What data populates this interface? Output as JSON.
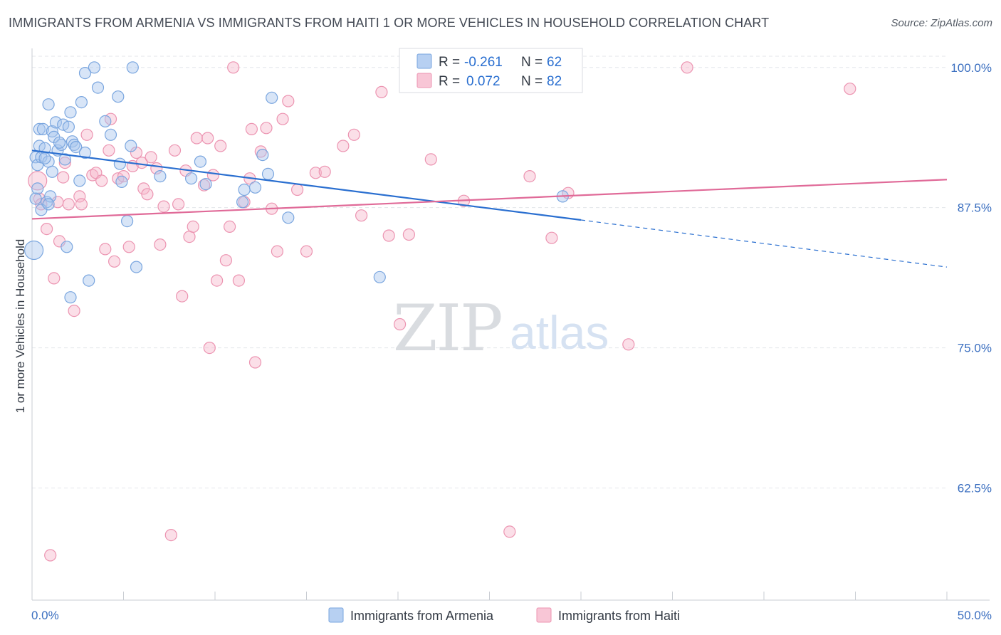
{
  "header": {
    "title": "IMMIGRANTS FROM ARMENIA VS IMMIGRANTS FROM HAITI 1 OR MORE VEHICLES IN HOUSEHOLD CORRELATION CHART",
    "source": "Source: ZipAtlas.com"
  },
  "watermark": {
    "zip": "ZIP",
    "atlas": "atlas"
  },
  "chart_data": {
    "type": "scatter",
    "title": "IMMIGRANTS FROM ARMENIA VS IMMIGRANTS FROM HAITI 1 OR MORE VEHICLES IN HOUSEHOLD CORRELATION CHART",
    "xlabel": "",
    "ylabel": "1 or more Vehicles in Household",
    "xlim": [
      0,
      50
    ],
    "ylim": [
      52.5,
      101
    ],
    "x_tick_labels": [
      "0.0%",
      "50.0%"
    ],
    "y_ticks": [
      62.5,
      75.0,
      87.5,
      100.0
    ],
    "y_tick_labels": [
      "62.5%",
      "75.0%",
      "87.5%",
      "100.0%"
    ],
    "grid": "horizontal dashed",
    "legend_placement": "top-center",
    "series": [
      {
        "name": "Immigrants from Armenia",
        "color": "#a8c6ee",
        "stroke": "#7aa6df",
        "line_color": "#2a6fd0",
        "R": "-0.261",
        "N": "62",
        "trend": {
          "x0": 0,
          "y0": 92.6,
          "x1": 30,
          "y1": 86.4,
          "dash_to_x": 50,
          "dash_to_y": 82.2
        },
        "points": [
          [
            0.2,
            92.0
          ],
          [
            0.3,
            91.3
          ],
          [
            0.3,
            89.2
          ],
          [
            0.4,
            93.0
          ],
          [
            0.4,
            94.5
          ],
          [
            0.5,
            92.0
          ],
          [
            0.6,
            94.5
          ],
          [
            0.7,
            92.8
          ],
          [
            0.8,
            88.0
          ],
          [
            0.9,
            91.6
          ],
          [
            0.9,
            96.7
          ],
          [
            1.0,
            88.5
          ],
          [
            1.1,
            90.7
          ],
          [
            1.1,
            94.3
          ],
          [
            1.2,
            93.8
          ],
          [
            1.3,
            95.1
          ],
          [
            1.4,
            92.6
          ],
          [
            1.6,
            93.1
          ],
          [
            1.7,
            94.9
          ],
          [
            1.8,
            91.8
          ],
          [
            1.9,
            84.0
          ],
          [
            2.0,
            94.7
          ],
          [
            2.1,
            96.0
          ],
          [
            2.2,
            93.4
          ],
          [
            2.3,
            93.1
          ],
          [
            2.4,
            92.9
          ],
          [
            2.6,
            89.9
          ],
          [
            2.7,
            96.9
          ],
          [
            2.9,
            92.4
          ],
          [
            2.9,
            99.5
          ],
          [
            3.1,
            81.0
          ],
          [
            3.4,
            100.0
          ],
          [
            3.6,
            98.2
          ],
          [
            4.0,
            95.2
          ],
          [
            4.3,
            94.0
          ],
          [
            4.7,
            97.4
          ],
          [
            4.8,
            91.4
          ],
          [
            4.9,
            89.8
          ],
          [
            5.2,
            86.3
          ],
          [
            5.4,
            93.0
          ],
          [
            5.5,
            100.0
          ],
          [
            5.7,
            82.2
          ],
          [
            7.0,
            90.3
          ],
          [
            8.7,
            90.1
          ],
          [
            9.2,
            91.6
          ],
          [
            9.5,
            89.6
          ],
          [
            11.5,
            88.0
          ],
          [
            11.6,
            89.1
          ],
          [
            12.2,
            89.3
          ],
          [
            12.6,
            92.2
          ],
          [
            12.9,
            90.5
          ],
          [
            13.1,
            97.3
          ],
          [
            14.0,
            86.6
          ],
          [
            19.0,
            81.3
          ],
          [
            29.0,
            88.5
          ],
          [
            0.1,
            83.7
          ],
          [
            0.2,
            88.3
          ],
          [
            0.5,
            87.3
          ],
          [
            0.9,
            87.8
          ],
          [
            2.1,
            79.5
          ],
          [
            1.5,
            93.3
          ],
          [
            0.7,
            91.9
          ]
        ]
      },
      {
        "name": "Immigrants from Haiti",
        "color": "#f6b9cc",
        "stroke": "#ec94b1",
        "line_color": "#e06a98",
        "R": "0.072",
        "N": "82",
        "trend": {
          "x0": 0,
          "y0": 86.5,
          "x1": 50,
          "y1": 90.0
        },
        "points": [
          [
            0.3,
            89.9
          ],
          [
            0.4,
            88.3
          ],
          [
            0.5,
            87.8
          ],
          [
            0.8,
            85.6
          ],
          [
            1.0,
            56.5
          ],
          [
            1.2,
            81.2
          ],
          [
            1.4,
            88.0
          ],
          [
            1.5,
            84.5
          ],
          [
            1.7,
            90.2
          ],
          [
            1.8,
            91.5
          ],
          [
            2.0,
            87.8
          ],
          [
            2.3,
            78.3
          ],
          [
            2.6,
            88.5
          ],
          [
            2.7,
            87.8
          ],
          [
            3.0,
            94.0
          ],
          [
            3.3,
            90.4
          ],
          [
            3.5,
            90.6
          ],
          [
            3.8,
            89.9
          ],
          [
            4.0,
            83.8
          ],
          [
            4.2,
            92.6
          ],
          [
            4.3,
            95.4
          ],
          [
            4.5,
            82.7
          ],
          [
            4.7,
            90.1
          ],
          [
            5.0,
            90.3
          ],
          [
            5.3,
            84.0
          ],
          [
            5.5,
            91.2
          ],
          [
            5.7,
            92.4
          ],
          [
            6.0,
            91.5
          ],
          [
            6.1,
            89.2
          ],
          [
            6.3,
            88.7
          ],
          [
            6.5,
            92.0
          ],
          [
            6.8,
            91.0
          ],
          [
            7.0,
            84.2
          ],
          [
            7.2,
            87.6
          ],
          [
            7.6,
            58.3
          ],
          [
            7.8,
            92.6
          ],
          [
            8.0,
            87.8
          ],
          [
            8.2,
            79.6
          ],
          [
            8.4,
            90.8
          ],
          [
            8.6,
            84.9
          ],
          [
            8.8,
            85.8
          ],
          [
            9.0,
            93.7
          ],
          [
            9.4,
            89.5
          ],
          [
            9.6,
            93.7
          ],
          [
            9.7,
            75.0
          ],
          [
            9.9,
            90.4
          ],
          [
            10.1,
            81.0
          ],
          [
            10.3,
            93.0
          ],
          [
            10.6,
            82.8
          ],
          [
            10.8,
            85.8
          ],
          [
            11.0,
            100.0
          ],
          [
            11.3,
            81.0
          ],
          [
            11.6,
            88.0
          ],
          [
            11.9,
            90.1
          ],
          [
            12.0,
            94.5
          ],
          [
            12.2,
            73.7
          ],
          [
            12.5,
            92.5
          ],
          [
            12.8,
            94.6
          ],
          [
            13.1,
            87.4
          ],
          [
            13.4,
            83.6
          ],
          [
            13.7,
            95.4
          ],
          [
            14.0,
            97.0
          ],
          [
            14.5,
            89.1
          ],
          [
            15.0,
            83.6
          ],
          [
            15.5,
            90.6
          ],
          [
            16.0,
            90.7
          ],
          [
            17.0,
            93.0
          ],
          [
            17.6,
            94.0
          ],
          [
            18.0,
            86.8
          ],
          [
            19.1,
            97.8
          ],
          [
            19.5,
            85.0
          ],
          [
            20.1,
            77.1
          ],
          [
            20.6,
            85.1
          ],
          [
            21.8,
            91.8
          ],
          [
            23.6,
            88.1
          ],
          [
            26.1,
            58.6
          ],
          [
            27.2,
            90.3
          ],
          [
            28.4,
            84.8
          ],
          [
            29.3,
            88.8
          ],
          [
            32.6,
            75.3
          ],
          [
            35.8,
            100.0
          ],
          [
            44.7,
            98.1
          ]
        ]
      }
    ]
  },
  "legend_box": {
    "rows": [
      {
        "r_label": "R =",
        "r_value": "-0.261",
        "n_label": "N =",
        "n_value": "62"
      },
      {
        "r_label": "R =",
        "r_value": "0.072",
        "n_label": "N =",
        "n_value": "82"
      }
    ]
  },
  "bottom_legend": [
    "Immigrants from Armenia",
    "Immigrants from Haiti"
  ]
}
